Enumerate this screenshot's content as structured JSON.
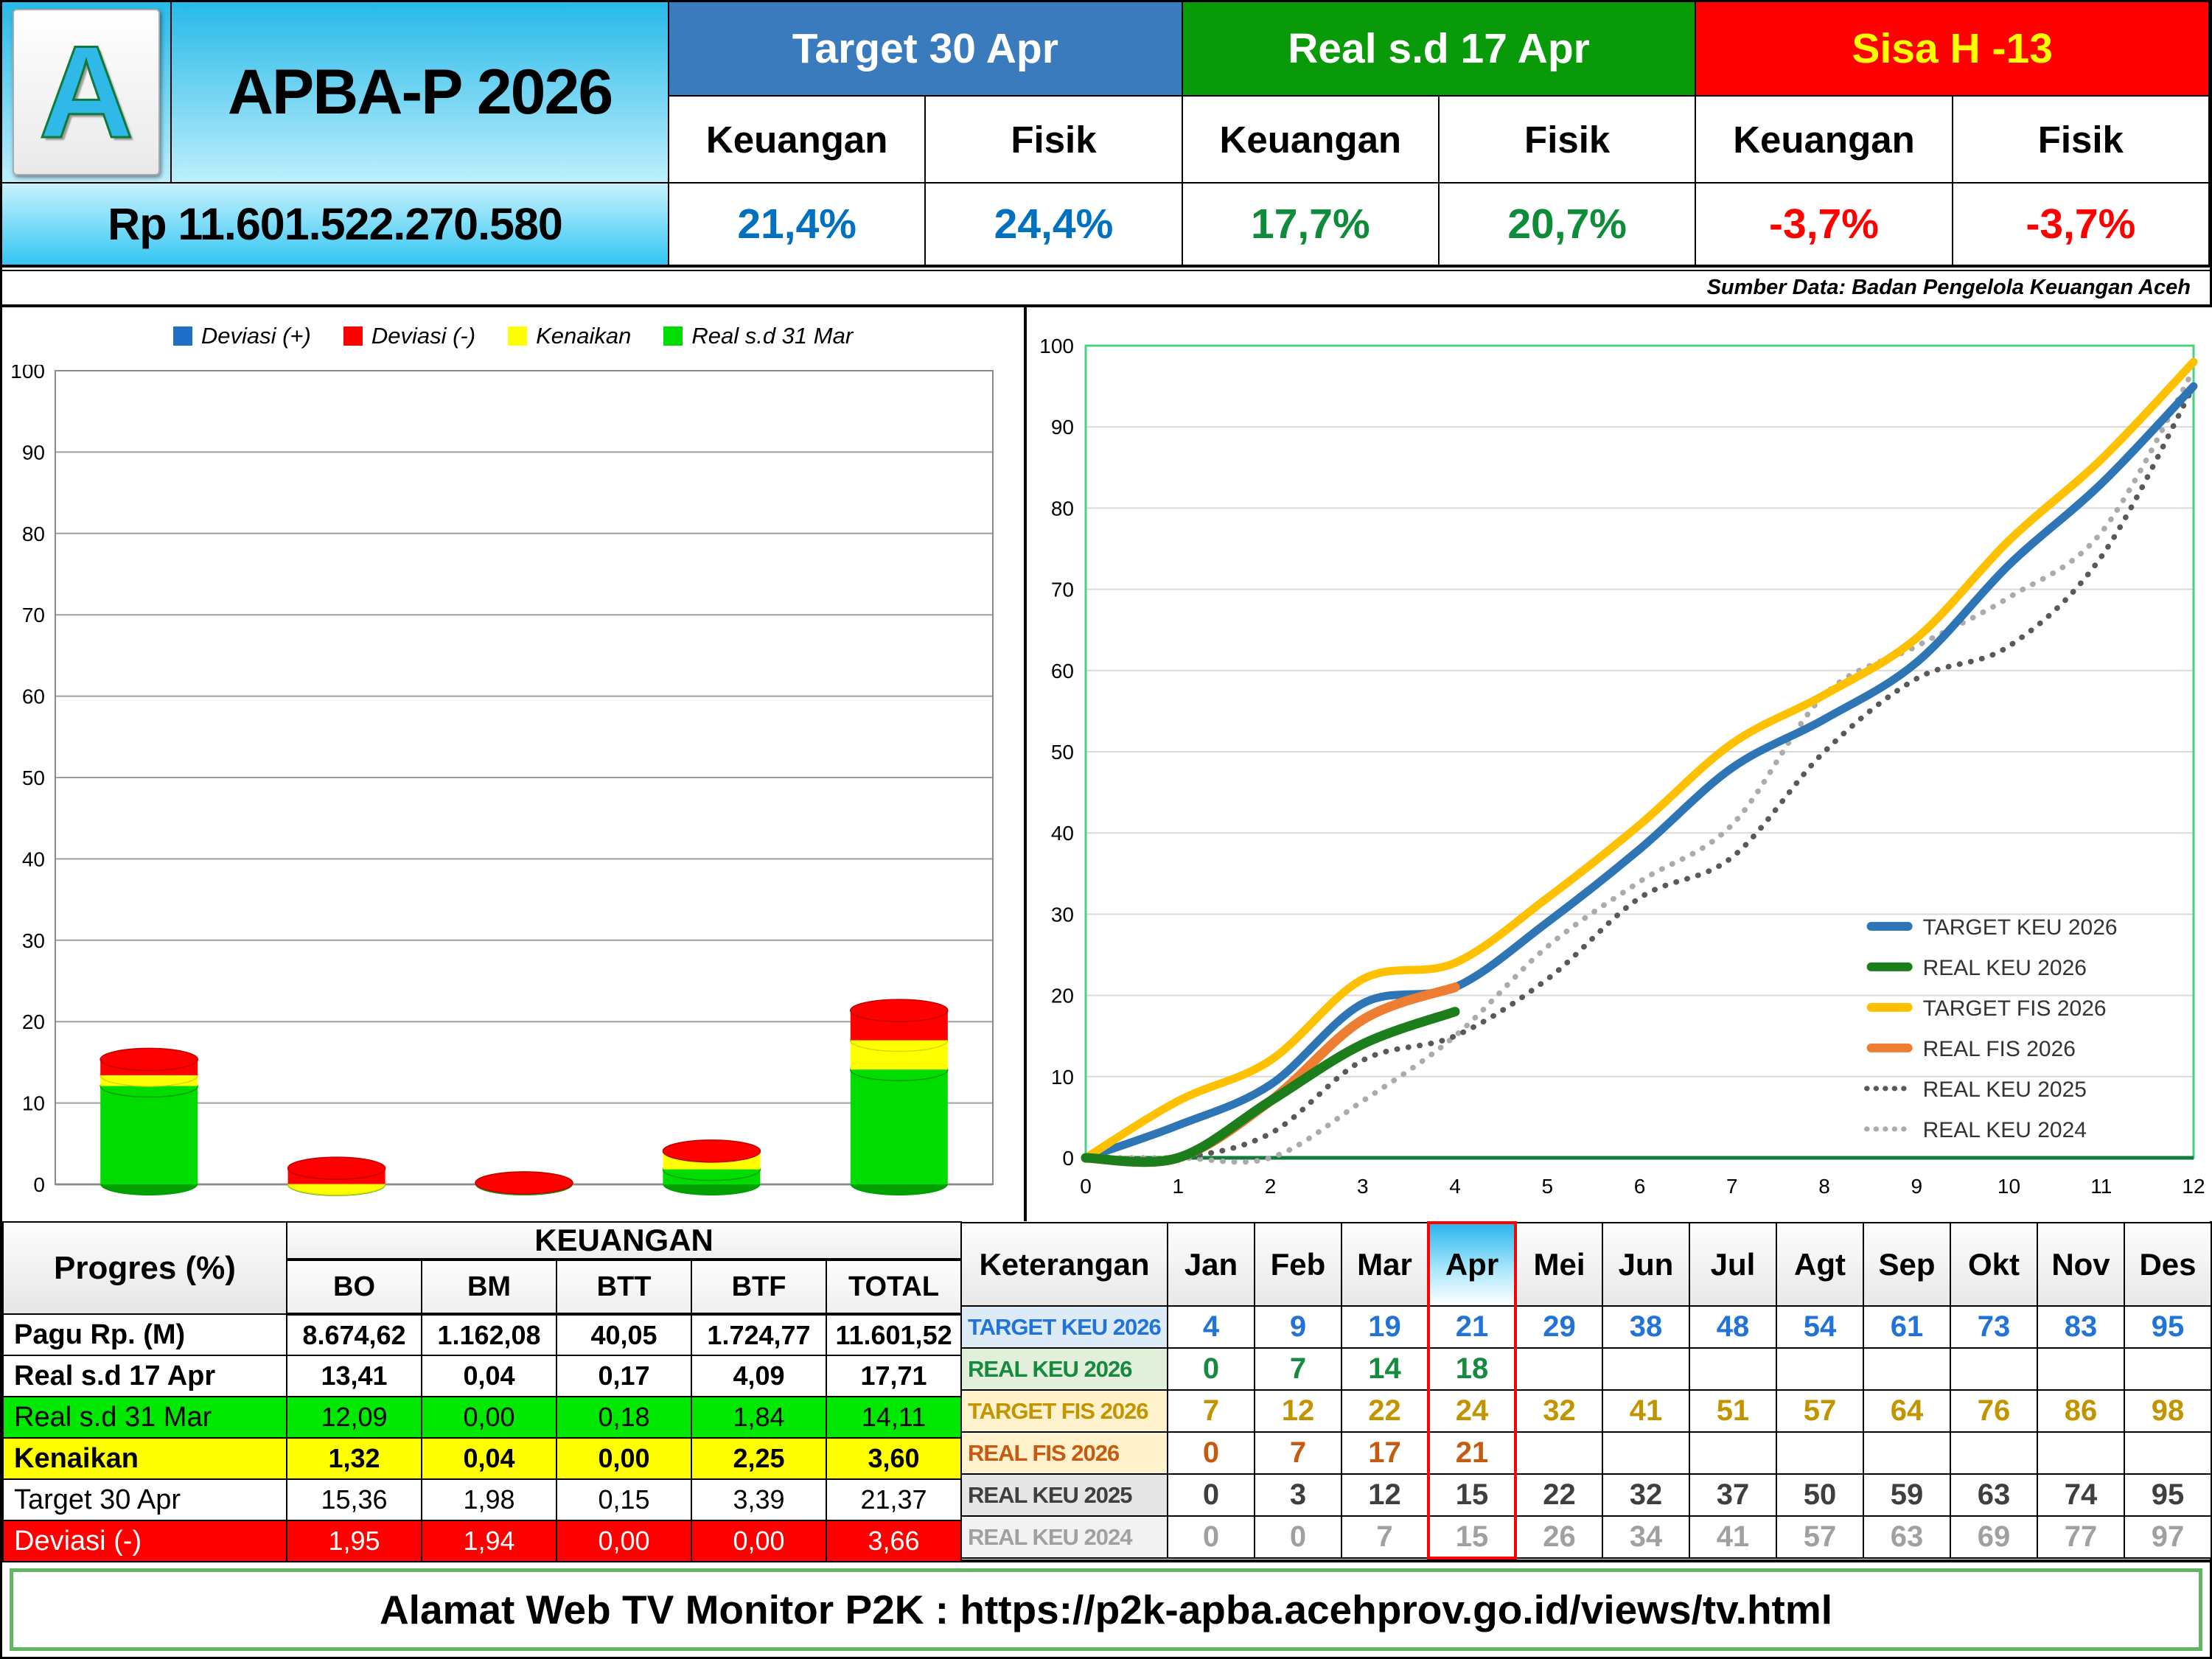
{
  "header": {
    "logo_letter": "A",
    "title": "APBA-P 2026",
    "budget_total": "Rp 11.601.522.270.580",
    "sub_headers": [
      "Keuangan",
      "Fisik"
    ],
    "groups": [
      {
        "label": "Target 30 Apr",
        "color": "#3a7bbe",
        "text_color": "#ffffff",
        "value_color": "#0070c0",
        "keuangan": "21,4%",
        "fisik": "24,4%"
      },
      {
        "label": "Real s.d 17 Apr",
        "color": "#089a08",
        "text_color": "#ffffff",
        "value_color": "#0e8c3a",
        "keuangan": "17,7%",
        "fisik": "20,7%"
      },
      {
        "label": "Sisa H -13",
        "color": "#fe0000",
        "text_color": "#ffff00",
        "value_color": "#fe0000",
        "keuangan": "-3,7%",
        "fisik": "-3,7%"
      }
    ],
    "source_note": "Sumber Data: Badan Pengelola Keuangan Aceh"
  },
  "chart_data": [
    {
      "type": "bar",
      "subtype": "stacked-3d-cylinder",
      "title": "",
      "categories": [
        "BO",
        "BM",
        "BTT",
        "BTF",
        "TOTAL"
      ],
      "series": [
        {
          "name": "Real s.d 31 Mar",
          "color": "#00dc00",
          "values": [
            12.09,
            0.0,
            0.18,
            1.84,
            14.11
          ]
        },
        {
          "name": "Kenaikan",
          "color": "#ffff00",
          "values": [
            1.32,
            0.04,
            0.0,
            2.25,
            3.6
          ]
        },
        {
          "name": "Deviasi  (-)",
          "color": "#ff0000",
          "values": [
            1.95,
            1.94,
            0.0,
            0.0,
            3.66
          ]
        }
      ],
      "legend": [
        {
          "label": "Deviasi (+)",
          "color": "#1f6fc8"
        },
        {
          "label": "Deviasi  (-)",
          "color": "#ff0000"
        },
        {
          "label": "Kenaikan",
          "color": "#ffff00"
        },
        {
          "label": "Real s.d 31 Mar",
          "color": "#00dc00"
        }
      ],
      "ylim": [
        0,
        100
      ],
      "ytick_step": 10,
      "grid": true,
      "legend_position": "top-center"
    },
    {
      "type": "line",
      "title": "",
      "xlim": [
        0,
        12
      ],
      "ylim": [
        0,
        100
      ],
      "xtick_step": 1,
      "ytick_step": 10,
      "grid": true,
      "legend_position": "inside-right",
      "series": [
        {
          "name": "TARGET KEU 2026",
          "color": "#2e75b6",
          "style": "solid",
          "x": [
            0,
            1,
            2,
            3,
            4,
            5,
            6,
            7,
            8,
            9,
            10,
            11,
            12
          ],
          "values": [
            0,
            4,
            9,
            19,
            21,
            29,
            38,
            48,
            54,
            61,
            73,
            83,
            95
          ]
        },
        {
          "name": "REAL KEU 2026",
          "color": "#1b7e1b",
          "style": "solid",
          "x": [
            0,
            1,
            2,
            3,
            4
          ],
          "values": [
            0,
            0,
            7,
            14,
            18
          ]
        },
        {
          "name": "TARGET FIS 2026",
          "color": "#ffc000",
          "style": "solid",
          "x": [
            0,
            1,
            2,
            3,
            4,
            5,
            6,
            7,
            8,
            9,
            10,
            11,
            12
          ],
          "values": [
            0,
            7,
            12,
            22,
            24,
            32,
            41,
            51,
            57,
            64,
            76,
            86,
            98
          ]
        },
        {
          "name": "REAL FIS 2026",
          "color": "#ed7d31",
          "style": "solid",
          "x": [
            0,
            1,
            2,
            3,
            4
          ],
          "values": [
            0,
            0,
            7,
            17,
            21
          ]
        },
        {
          "name": "REAL KEU 2025",
          "color": "#595959",
          "style": "dotted",
          "x": [
            0,
            1,
            2,
            3,
            4,
            5,
            6,
            7,
            8,
            9,
            10,
            11,
            12
          ],
          "values": [
            0,
            0,
            3,
            12,
            15,
            22,
            32,
            37,
            50,
            59,
            63,
            74,
            95
          ]
        },
        {
          "name": "REAL KEU 2024",
          "color": "#ababab",
          "style": "dotted",
          "x": [
            0,
            1,
            2,
            3,
            4,
            5,
            6,
            7,
            8,
            9,
            10,
            11,
            12
          ],
          "values": [
            0,
            0,
            0,
            7,
            15,
            26,
            34,
            41,
            57,
            63,
            69,
            77,
            97
          ]
        }
      ]
    }
  ],
  "left_table": {
    "header_title": "Progres (%)",
    "group_header": "KEUANGAN",
    "columns": [
      "BO",
      "BM",
      "BTT",
      "BTF",
      "TOTAL"
    ],
    "rows": [
      {
        "label": "Pagu Rp. (M)",
        "values": [
          "8.674,62",
          "1.162,08",
          "40,05",
          "1.724,77",
          "11.601,52"
        ],
        "bg": "#ffffff",
        "fg": "#000000",
        "bold": true
      },
      {
        "label": "Real s.d 17 Apr",
        "values": [
          "13,41",
          "0,04",
          "0,17",
          "4,09",
          "17,71"
        ],
        "bg": "#ffffff",
        "fg": "#000000",
        "bold": true
      },
      {
        "label": "Real s.d 31 Mar",
        "values": [
          "12,09",
          "0,00",
          "0,18",
          "1,84",
          "14,11"
        ],
        "bg": "#00e800",
        "fg": "#000000",
        "bold": false
      },
      {
        "label": "Kenaikan",
        "values": [
          "1,32",
          "0,04",
          "0,00",
          "2,25",
          "3,60"
        ],
        "bg": "#ffff00",
        "fg": "#000000",
        "bold": true
      },
      {
        "label": "Target 30 Apr",
        "values": [
          "15,36",
          "1,98",
          "0,15",
          "3,39",
          "21,37"
        ],
        "bg": "#ffffff",
        "fg": "#000000",
        "bold": false
      },
      {
        "label": "Deviasi  (-)",
        "values": [
          "1,95",
          "1,94",
          "0,00",
          "0,00",
          "3,66"
        ],
        "bg": "#fe0000",
        "fg": "#ffffff",
        "bold": false
      }
    ]
  },
  "right_table": {
    "header_label": "Keterangan",
    "months": [
      "Jan",
      "Feb",
      "Mar",
      "Apr",
      "Mei",
      "Jun",
      "Jul",
      "Agt",
      "Sep",
      "Okt",
      "Nov",
      "Des"
    ],
    "highlight_month": "Apr",
    "rows": [
      {
        "label": "TARGET KEU 2026",
        "color": "#2173d8",
        "label_bg": "#ddebf7",
        "values": [
          "4",
          "9",
          "19",
          "21",
          "29",
          "38",
          "48",
          "54",
          "61",
          "73",
          "83",
          "95"
        ]
      },
      {
        "label": "REAL KEU 2026",
        "color": "#168a3e",
        "label_bg": "#e2efda",
        "values": [
          "0",
          "7",
          "14",
          "18",
          "",
          "",
          "",
          "",
          "",
          "",
          "",
          ""
        ]
      },
      {
        "label": "TARGET FIS 2026",
        "color": "#c29500",
        "label_bg": "#fff2cc",
        "values": [
          "7",
          "12",
          "22",
          "24",
          "32",
          "41",
          "51",
          "57",
          "64",
          "76",
          "86",
          "98"
        ]
      },
      {
        "label": "REAL FIS 2026",
        "color": "#c55a11",
        "label_bg": "#fff2cc",
        "values": [
          "0",
          "7",
          "17",
          "21",
          "",
          "",
          "",
          "",
          "",
          "",
          "",
          ""
        ]
      },
      {
        "label": "REAL KEU 2025",
        "color": "#3f3f3f",
        "label_bg": "#e7e6e6",
        "values": [
          "0",
          "3",
          "12",
          "15",
          "22",
          "32",
          "37",
          "50",
          "59",
          "63",
          "74",
          "95"
        ]
      },
      {
        "label": "REAL KEU 2024",
        "color": "#a0a0a0",
        "label_bg": "#f2f2f2",
        "values": [
          "0",
          "0",
          "7",
          "15",
          "26",
          "34",
          "41",
          "57",
          "63",
          "69",
          "77",
          "97"
        ]
      }
    ]
  },
  "footer": {
    "text": "Alamat Web TV Monitor P2K : https://p2k-apba.acehprov.go.id/views/tv.html"
  }
}
